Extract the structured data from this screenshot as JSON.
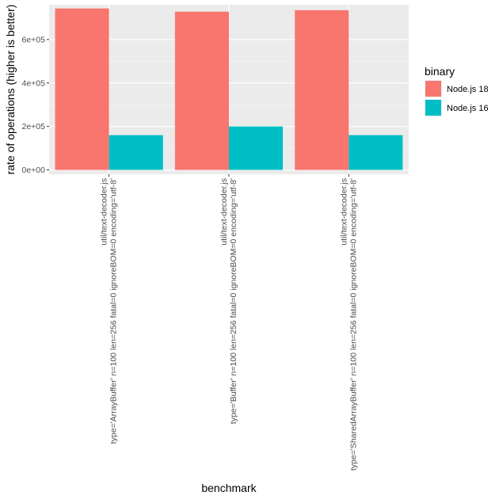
{
  "chart_data": {
    "type": "bar",
    "xlabel": "benchmark",
    "ylabel": "rate of operations (higher is better)",
    "ylim": [
      -20000,
      760000
    ],
    "yticks": [
      {
        "value": 0,
        "label": "0e+00"
      },
      {
        "value": 200000,
        "label": "2e+05"
      },
      {
        "value": 400000,
        "label": "4e+05"
      },
      {
        "value": 600000,
        "label": "6e+05"
      }
    ],
    "grid": true,
    "legend": {
      "title": "binary",
      "placement": "right"
    },
    "categories": [
      {
        "line1": "util/text-decoder.js",
        "line2": "type='ArrayBuffer' n=100 len=256 fatal=0 ignoreBOM=0 encoding='utf-8'"
      },
      {
        "line1": "util/text-decoder.js",
        "line2": "type='Buffer' n=100 len=256 fatal=0 ignoreBOM=0 encoding='utf-8'"
      },
      {
        "line1": "util/text-decoder.js",
        "line2": "type='SharedArrayBuffer' n=100 len=256 fatal=0 ignoreBOM=0 encoding='utf-8'"
      }
    ],
    "series": [
      {
        "name": "Node.js 18",
        "color": "#F8766D",
        "values": [
          743000,
          728000,
          735000
        ]
      },
      {
        "name": "Node.js 16",
        "color": "#00BFC4",
        "values": [
          160000,
          200000,
          160000
        ]
      }
    ]
  }
}
